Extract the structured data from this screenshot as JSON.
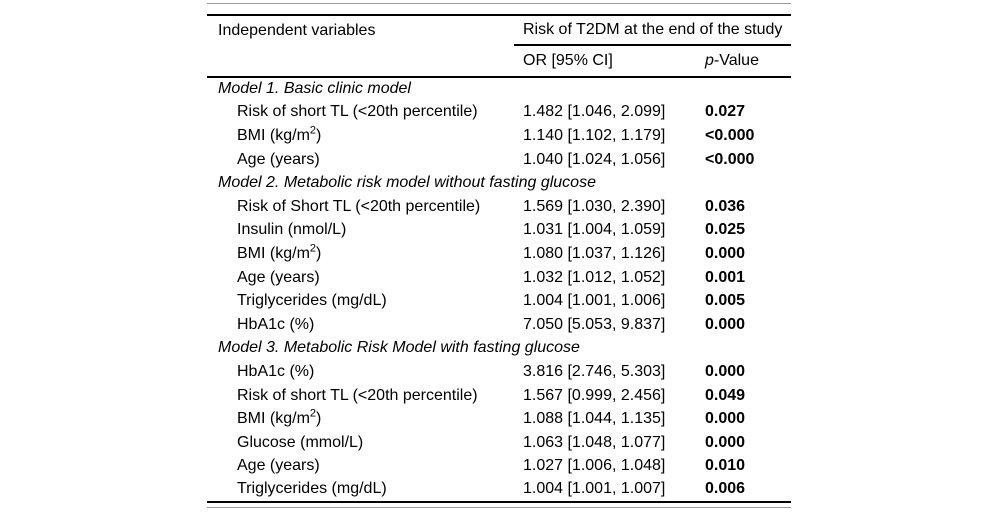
{
  "table": {
    "header": {
      "col1": "Independent variables",
      "group": "Risk of T2DM at the end of the study",
      "sub_or": "OR [95% CI]",
      "sub_p_italic": "p",
      "sub_p_rest": "-Value"
    },
    "sections": [
      {
        "title": "Model 1. Basic clinic model",
        "rows": [
          {
            "label": "Risk of short TL (<20th percentile)",
            "or": "1.482 [1.046, 2.099]",
            "p": "0.027"
          },
          {
            "label": "BMI (kg/m",
            "sup": "2",
            "label_end": ")",
            "or": "1.140 [1.102, 1.179]",
            "p": "<0.000"
          },
          {
            "label": "Age (years)",
            "or": "1.040 [1.024, 1.056]",
            "p": "<0.000"
          }
        ]
      },
      {
        "title": "Model 2. Metabolic risk model without fasting glucose",
        "rows": [
          {
            "label": "Risk of Short TL (<20th percentile)",
            "or": "1.569 [1.030, 2.390]",
            "p": "0.036"
          },
          {
            "label": "Insulin (nmol/L)",
            "or": "1.031 [1.004, 1.059]",
            "p": "0.025"
          },
          {
            "label": "BMI (kg/m",
            "sup": "2",
            "label_end": ")",
            "or": "1.080 [1.037, 1.126]",
            "p": "0.000"
          },
          {
            "label": "Age (years)",
            "or": "1.032 [1.012, 1.052]",
            "p": "0.001"
          },
          {
            "label": "Triglycerides (mg/dL)",
            "or": "1.004 [1.001, 1.006]",
            "p": "0.005"
          },
          {
            "label": "HbA1c (%)",
            "or": "7.050 [5.053, 9.837]",
            "p": "0.000"
          }
        ]
      },
      {
        "title": "Model 3. Metabolic Risk Model with fasting glucose",
        "rows": [
          {
            "label": "HbA1c (%)",
            "or": "3.816 [2.746, 5.303]",
            "p": "0.000"
          },
          {
            "label": "Risk of short TL (<20th percentile)",
            "or": "1.567 [0.999, 2.456]",
            "p": "0.049"
          },
          {
            "label": "BMI (kg/m",
            "sup": "2",
            "label_end": ")",
            "or": "1.088 [1.044, 1.135]",
            "p": "0.000"
          },
          {
            "label": "Glucose (mmol/L)",
            "or": "1.063 [1.048, 1.077]",
            "p": "0.000"
          },
          {
            "label": "Age (years)",
            "or": "1.027 [1.006, 1.048]",
            "p": "0.010"
          },
          {
            "label": "Triglycerides (mg/dL)",
            "or": "1.004 [1.001, 1.007]",
            "p": "0.006"
          }
        ]
      }
    ]
  },
  "colors": {
    "text": "#000000",
    "rule_dark": "#000000",
    "rule_light": "#9a9a9a",
    "background": "#ffffff"
  }
}
